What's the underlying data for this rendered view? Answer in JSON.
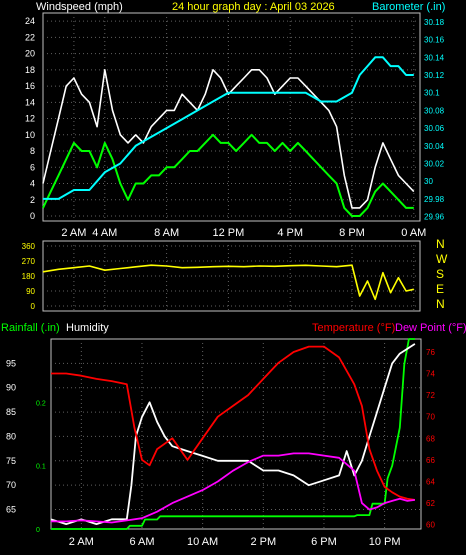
{
  "header": {
    "wind_label": "Windspeed (mph)",
    "title": "24 hour graph day : April 03 2026",
    "baro_label": "Barometer (.in)"
  },
  "labels": {
    "rain_label": "Rainfall (.in)",
    "humidity_label": "Humidity",
    "temp_label": "Temperature (°F)",
    "dew_label": "Dew Point (°F)",
    "compass": [
      "N",
      "W",
      "S",
      "E",
      "N"
    ]
  },
  "colors": {
    "bg": "#000000",
    "axis": "#ffffff",
    "grid": "#606060",
    "wind_gust": "#ffffff",
    "wind_avg": "#00ff00",
    "baro": "#00ffff",
    "direction": "#ffff00",
    "rain": "#00ff00",
    "humidity": "#ffffff",
    "temperature": "#ff0000",
    "dewpoint": "#ff00ff",
    "humidity_axis": "#ffffff",
    "rain_axis": "#00ff00",
    "temp_axis": "#ff0000"
  },
  "chart_data": [
    {
      "type": "line",
      "title": "24 hour graph day : April 03 2026",
      "xlabel": "",
      "x_ticks": [
        "2 AM",
        "4 AM",
        "8 AM",
        "12 PM",
        "4 PM",
        "8 PM",
        "0 AM"
      ],
      "x_tick_hours": [
        2,
        4,
        8,
        12,
        16,
        20,
        24
      ],
      "xlim": [
        0,
        24.4
      ],
      "ylim": [
        0,
        25
      ],
      "y_ticks": [
        0,
        2,
        4,
        6,
        8,
        10,
        12,
        14,
        16,
        18,
        20,
        22,
        24
      ],
      "ylim_right": [
        29.955,
        30.19
      ],
      "y_ticks_right": [
        "29.96",
        "29.98",
        "30",
        "30.02",
        "30.04",
        "30.06",
        "30.08",
        "30.1",
        "30.12",
        "30.14",
        "30.16",
        "30.18"
      ],
      "grid": true,
      "series": [
        {
          "name": "Windspeed (mph)",
          "role": "gust",
          "color": "#ffffff",
          "x": [
            0,
            0.5,
            1,
            1.5,
            2,
            2.5,
            3,
            3.5,
            4,
            4.5,
            5,
            5.5,
            6,
            6.5,
            7,
            7.5,
            8,
            8.5,
            9,
            9.5,
            10,
            10.5,
            11,
            11.5,
            12,
            12.5,
            13,
            13.5,
            14,
            14.5,
            15,
            15.5,
            16,
            16.5,
            17,
            17.5,
            18,
            18.5,
            19,
            19.5,
            20,
            20.5,
            21,
            21.5,
            22,
            22.5,
            23,
            23.5,
            24
          ],
          "values": [
            4,
            8,
            12,
            16,
            17,
            15,
            14,
            11,
            18,
            13,
            10,
            9,
            10,
            9,
            11,
            12,
            13,
            13,
            15,
            14,
            13,
            15,
            18,
            17,
            15,
            16,
            17,
            18,
            18,
            17,
            15,
            16,
            17,
            17,
            16,
            15,
            14,
            13,
            11,
            5,
            1,
            1,
            2,
            6,
            9,
            7,
            5,
            4,
            3
          ]
        },
        {
          "name": "Windspeed (mph)",
          "role": "avg",
          "color": "#00ff00",
          "x": [
            0,
            0.5,
            1,
            1.5,
            2,
            2.5,
            3,
            3.5,
            4,
            4.5,
            5,
            5.5,
            6,
            6.5,
            7,
            7.5,
            8,
            8.5,
            9,
            9.5,
            10,
            10.5,
            11,
            11.5,
            12,
            12.5,
            13,
            13.5,
            14,
            14.5,
            15,
            15.5,
            16,
            16.5,
            17,
            17.5,
            18,
            18.5,
            19,
            19.5,
            20,
            20.5,
            21,
            21.5,
            22,
            22.5,
            23,
            23.5,
            24
          ],
          "values": [
            1,
            3,
            5,
            7,
            9,
            8,
            8,
            6,
            9,
            7,
            4,
            2,
            4,
            4,
            5,
            5,
            6,
            6,
            7,
            8,
            8,
            9,
            10,
            9,
            9,
            8,
            9,
            10,
            9,
            9,
            8,
            9,
            8,
            9,
            8,
            7,
            6,
            5,
            4,
            1,
            0,
            0,
            1,
            3,
            4,
            3,
            2,
            1,
            1
          ]
        },
        {
          "name": "Barometer (.in)",
          "role": "baro",
          "color": "#00ffff",
          "x": [
            0,
            1,
            2,
            3,
            4,
            5,
            6,
            7,
            8,
            9,
            10,
            11,
            12,
            13,
            14,
            15,
            16,
            17,
            18,
            19,
            20,
            20.5,
            21,
            21.5,
            22,
            22.5,
            23,
            23.5,
            24
          ],
          "values": [
            29.98,
            29.98,
            29.99,
            29.99,
            30.01,
            30.02,
            30.04,
            30.05,
            30.06,
            30.07,
            30.08,
            30.09,
            30.1,
            30.1,
            30.1,
            30.1,
            30.1,
            30.1,
            30.09,
            30.09,
            30.1,
            30.12,
            30.13,
            30.14,
            30.14,
            30.13,
            30.13,
            30.12,
            30.12
          ]
        }
      ]
    },
    {
      "type": "line",
      "title": "",
      "xlim": [
        0,
        24.4
      ],
      "ylim": [
        0,
        360
      ],
      "y_ticks": [
        0,
        90,
        180,
        270,
        360
      ],
      "grid": true,
      "series": [
        {
          "name": "",
          "role": "direction",
          "color": "#ffff00",
          "x": [
            0,
            1,
            2,
            3,
            4,
            5,
            6,
            7,
            8,
            9,
            10,
            11,
            12,
            13,
            14,
            15,
            16,
            17,
            18,
            19,
            20,
            20.5,
            21,
            21.5,
            22,
            22.5,
            23,
            23.5,
            24
          ],
          "values": [
            205,
            220,
            230,
            240,
            215,
            225,
            235,
            245,
            240,
            230,
            232,
            236,
            238,
            236,
            240,
            238,
            242,
            244,
            240,
            236,
            245,
            60,
            150,
            40,
            200,
            80,
            170,
            90,
            100
          ]
        }
      ]
    },
    {
      "type": "line",
      "title": "",
      "x_ticks": [
        "2 AM",
        "6 AM",
        "10 AM",
        "2 PM",
        "6 PM",
        "10 PM"
      ],
      "x_tick_hours": [
        2,
        6,
        10,
        14,
        18,
        22
      ],
      "xlim": [
        0,
        24.4
      ],
      "ylim_humidity": [
        61,
        100
      ],
      "y_ticks_humidity": [
        65,
        70,
        75,
        80,
        85,
        90,
        95
      ],
      "ylim_rain": [
        0,
        0.3
      ],
      "y_ticks_rain": [
        "0",
        "0.1",
        "0.2"
      ],
      "ylim_temp": [
        59.6,
        77.2
      ],
      "y_ticks_temp": [
        60,
        62,
        64,
        66,
        68,
        70,
        72,
        74,
        76
      ],
      "grid": true,
      "series": [
        {
          "name": "Rainfall (.in)",
          "color": "#00ff00",
          "x": [
            0,
            5,
            5.2,
            6,
            6.2,
            7,
            7.2,
            20,
            20.2,
            21,
            21.2,
            22,
            22.2,
            22.5,
            23,
            23.3,
            23.6,
            24
          ],
          "values": [
            0,
            0,
            0.005,
            0.005,
            0.015,
            0.015,
            0.02,
            0.02,
            0.022,
            0.022,
            0.04,
            0.04,
            0.08,
            0.1,
            0.16,
            0.26,
            0.3,
            0.3
          ]
        },
        {
          "name": "Humidity",
          "color": "#ffffff",
          "x": [
            0,
            1,
            2,
            3,
            4,
            5,
            5.3,
            5.6,
            6,
            6.5,
            7,
            7.5,
            8,
            9,
            10,
            11,
            12,
            13,
            14,
            15,
            16,
            17,
            18,
            19,
            19.5,
            20,
            20.5,
            21,
            21.5,
            22,
            22.5,
            23,
            23.5,
            24
          ],
          "values": [
            63,
            62,
            63,
            62,
            63,
            63,
            70,
            80,
            84,
            87,
            83,
            80,
            78,
            77,
            76,
            75,
            75,
            75,
            73,
            73,
            72,
            70,
            71,
            72,
            77,
            72,
            75,
            80,
            85,
            90,
            95,
            97,
            98,
            99
          ]
        },
        {
          "name": "Temperature (°F)",
          "color": "#ff0000",
          "x": [
            0,
            1,
            2,
            3,
            4,
            5,
            5.5,
            6,
            6.5,
            7,
            8,
            9,
            10,
            11,
            12,
            13,
            14,
            15,
            16,
            17,
            18,
            19,
            20,
            20.5,
            21,
            21.5,
            22,
            22.5,
            23,
            23.5,
            24
          ],
          "values": [
            74,
            74,
            73.8,
            73.5,
            73.3,
            73,
            69,
            66,
            65.5,
            67,
            68,
            66,
            68,
            70,
            71,
            72,
            73.5,
            75,
            76,
            76.5,
            76.5,
            75.5,
            73,
            71,
            67,
            65,
            63.5,
            63,
            62.6,
            62.4,
            62.3
          ]
        },
        {
          "name": "Dew Point (°F)",
          "color": "#ff00ff",
          "x": [
            0,
            1,
            2,
            3,
            4,
            5,
            6,
            7,
            8,
            9,
            10,
            11,
            12,
            13,
            14,
            15,
            16,
            17,
            18,
            19,
            20,
            20.5,
            21,
            21.5,
            22,
            22.5,
            23,
            23.5,
            24
          ],
          "values": [
            60.3,
            60.3,
            60.4,
            60.3,
            60.2,
            60.4,
            60.6,
            61.2,
            62,
            62.6,
            63.2,
            64,
            65,
            65.8,
            66.4,
            66.4,
            66.6,
            66.6,
            66.4,
            66.2,
            65,
            62,
            61.4,
            61.6,
            62,
            62.2,
            62.4,
            62.2,
            62.3
          ]
        }
      ]
    }
  ]
}
